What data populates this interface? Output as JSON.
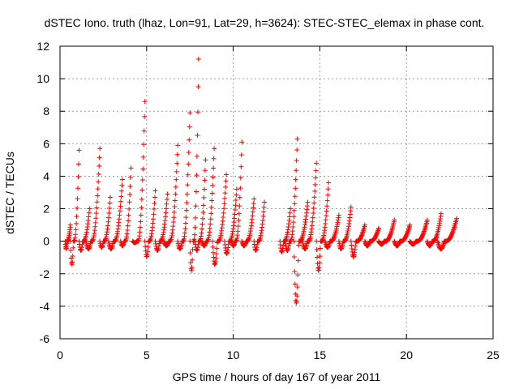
{
  "chart_data": {
    "type": "scatter",
    "title": "dSTEC Iono. truth (lhaz, Lon=91, Lat=29, h=3624): STEC-STEC_elemax in phase cont.",
    "xlabel": "GPS time / hours of day 167 of year 2011",
    "ylabel": "dSTEC  / TECUs",
    "xlim": [
      0,
      25
    ],
    "ylim": [
      -6,
      12
    ],
    "xticks": [
      0,
      5,
      10,
      15,
      20,
      25
    ],
    "yticks": [
      -6,
      -4,
      -2,
      0,
      2,
      4,
      6,
      8,
      10,
      12
    ],
    "grid": true,
    "marker": "+",
    "series_color": "#ff0000",
    "arcs": [
      {
        "t0": 0.3,
        "t1": 0.6,
        "min": -0.5,
        "max": 1.0
      },
      {
        "t0": 0.6,
        "t1": 1.1,
        "min": -1.5,
        "max": 5.6
      },
      {
        "t0": 1.1,
        "t1": 1.7,
        "min": -0.6,
        "max": 2.0
      },
      {
        "t0": 1.5,
        "t1": 2.3,
        "min": -0.5,
        "max": 5.7
      },
      {
        "t0": 2.3,
        "t1": 2.9,
        "min": -0.4,
        "max": 2.7
      },
      {
        "t0": 2.8,
        "t1": 3.6,
        "min": -0.5,
        "max": 3.8
      },
      {
        "t0": 3.5,
        "t1": 4.1,
        "min": -0.3,
        "max": 4.5
      },
      {
        "t0": 4.2,
        "t1": 4.9,
        "min": -0.1,
        "max": 8.6
      },
      {
        "t0": 4.9,
        "t1": 5.5,
        "min": -1.0,
        "max": 3.1
      },
      {
        "t0": 5.5,
        "t1": 6.2,
        "min": -0.6,
        "max": 2.9
      },
      {
        "t0": 6.0,
        "t1": 6.8,
        "min": -0.3,
        "max": 5.9
      },
      {
        "t0": 6.8,
        "t1": 7.5,
        "min": -0.5,
        "max": 7.9
      },
      {
        "t0": 7.5,
        "t1": 8.0,
        "min": -1.9,
        "max": 11.2
      },
      {
        "t0": 7.8,
        "t1": 8.4,
        "min": -0.6,
        "max": 5.0
      },
      {
        "t0": 8.2,
        "t1": 8.9,
        "min": -0.3,
        "max": 5.7
      },
      {
        "t0": 8.8,
        "t1": 9.6,
        "min": -1.5,
        "max": 4.1
      },
      {
        "t0": 9.5,
        "t1": 10.2,
        "min": -0.8,
        "max": 3.2
      },
      {
        "t0": 9.9,
        "t1": 10.5,
        "min": -0.3,
        "max": 6.1
      },
      {
        "t0": 10.5,
        "t1": 11.2,
        "min": -0.3,
        "max": 2.6
      },
      {
        "t0": 11.2,
        "t1": 11.8,
        "min": -0.6,
        "max": 2.4
      },
      {
        "t0": 12.7,
        "t1": 13.3,
        "min": -0.7,
        "max": 2.0
      },
      {
        "t0": 13.0,
        "t1": 13.7,
        "min": -0.6,
        "max": 6.3
      },
      {
        "t0": 13.5,
        "t1": 14.3,
        "min": -4.0,
        "max": 2.4
      },
      {
        "t0": 14.0,
        "t1": 14.8,
        "min": -0.5,
        "max": 4.8
      },
      {
        "t0": 14.8,
        "t1": 15.5,
        "min": -1.9,
        "max": 3.6
      },
      {
        "t0": 15.3,
        "t1": 16.1,
        "min": -0.4,
        "max": 1.6
      },
      {
        "t0": 16.1,
        "t1": 16.8,
        "min": -0.5,
        "max": 2.1
      },
      {
        "t0": 16.8,
        "t1": 17.6,
        "min": -1.0,
        "max": 1.0
      },
      {
        "t0": 17.6,
        "t1": 18.4,
        "min": -0.3,
        "max": 0.8
      },
      {
        "t0": 18.4,
        "t1": 19.3,
        "min": -0.2,
        "max": 1.3
      },
      {
        "t0": 19.3,
        "t1": 20.2,
        "min": -0.3,
        "max": 1.0
      },
      {
        "t0": 20.2,
        "t1": 21.2,
        "min": -0.2,
        "max": 1.3
      },
      {
        "t0": 21.2,
        "t1": 22.0,
        "min": -0.3,
        "max": 1.7
      },
      {
        "t0": 21.8,
        "t1": 22.9,
        "min": -0.5,
        "max": 1.4
      }
    ]
  }
}
